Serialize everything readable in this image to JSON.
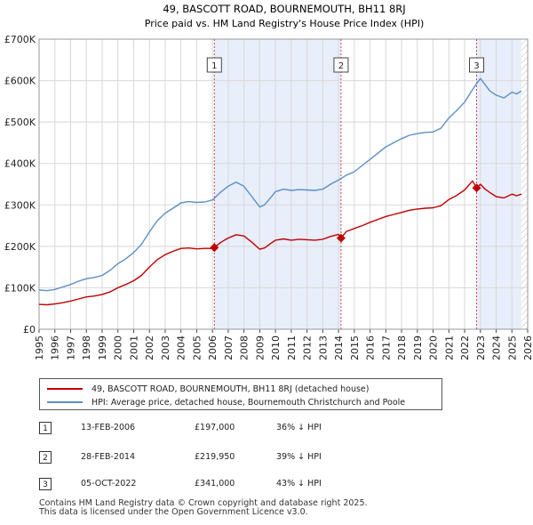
{
  "chart_data": {
    "type": "line",
    "title": "49, BASCOTT ROAD, BOURNEMOUTH, BH11 8RJ",
    "subtitle": "Price paid vs. HM Land Registry's House Price Index (HPI)",
    "xlabel": "",
    "ylabel": "",
    "xlim": [
      1995,
      2026
    ],
    "ylim": [
      0,
      700000
    ],
    "yticks": [
      {
        "value": 0,
        "label": "£0"
      },
      {
        "value": 100000,
        "label": "£100K"
      },
      {
        "value": 200000,
        "label": "£200K"
      },
      {
        "value": 300000,
        "label": "£300K"
      },
      {
        "value": 400000,
        "label": "£400K"
      },
      {
        "value": 500000,
        "label": "£500K"
      },
      {
        "value": 600000,
        "label": "£600K"
      },
      {
        "value": 700000,
        "label": "£700K"
      }
    ],
    "xticks": [
      "1995",
      "1996",
      "1997",
      "1998",
      "1999",
      "2000",
      "2001",
      "2002",
      "2003",
      "2004",
      "2005",
      "2006",
      "2007",
      "2008",
      "2009",
      "2010",
      "2011",
      "2012",
      "2013",
      "2014",
      "2015",
      "2016",
      "2017",
      "2018",
      "2019",
      "2020",
      "2021",
      "2022",
      "2023",
      "2024",
      "2025",
      "2026"
    ],
    "grid": true,
    "series": [
      {
        "name": "HPI: Average price, detached house, Bournemouth Christchurch and Poole",
        "color": "#5b8fc9",
        "x": [
          1995.0,
          1995.5,
          1996.0,
          1996.5,
          1997.0,
          1997.5,
          1998.0,
          1998.5,
          1999.0,
          1999.5,
          2000.0,
          2000.5,
          2001.0,
          2001.5,
          2002.0,
          2002.5,
          2003.0,
          2003.5,
          2004.0,
          2004.5,
          2005.0,
          2005.5,
          2006.0,
          2006.5,
          2007.0,
          2007.5,
          2008.0,
          2008.5,
          2009.0,
          2009.3,
          2009.7,
          2010.0,
          2010.5,
          2011.0,
          2011.5,
          2012.0,
          2012.5,
          2013.0,
          2013.5,
          2014.0,
          2014.5,
          2015.0,
          2015.5,
          2016.0,
          2016.5,
          2017.0,
          2017.5,
          2018.0,
          2018.5,
          2019.0,
          2019.5,
          2020.0,
          2020.5,
          2021.0,
          2021.5,
          2022.0,
          2022.5,
          2022.8,
          2023.0,
          2023.3,
          2023.6,
          2024.0,
          2024.5,
          2025.0,
          2025.3,
          2025.6
        ],
        "values": [
          95000,
          93000,
          96000,
          102000,
          108000,
          116000,
          122000,
          125000,
          130000,
          142000,
          158000,
          170000,
          185000,
          205000,
          235000,
          262000,
          280000,
          292000,
          305000,
          308000,
          306000,
          307000,
          312000,
          330000,
          345000,
          355000,
          345000,
          320000,
          295000,
          300000,
          318000,
          332000,
          338000,
          335000,
          337000,
          336000,
          335000,
          338000,
          350000,
          360000,
          372000,
          380000,
          395000,
          410000,
          425000,
          440000,
          450000,
          460000,
          468000,
          472000,
          475000,
          476000,
          485000,
          510000,
          528000,
          548000,
          578000,
          595000,
          605000,
          590000,
          575000,
          565000,
          558000,
          572000,
          568000,
          575000
        ]
      },
      {
        "name": "49, BASCOTT ROAD, BOURNEMOUTH, BH11 8RJ (detached house)",
        "color": "#c00000",
        "x": [
          1995.0,
          1995.5,
          1996.0,
          1996.5,
          1997.0,
          1997.5,
          1998.0,
          1998.5,
          1999.0,
          1999.5,
          2000.0,
          2000.5,
          2001.0,
          2001.5,
          2002.0,
          2002.5,
          2003.0,
          2003.5,
          2004.0,
          2004.5,
          2005.0,
          2005.5,
          2006.0,
          2006.12,
          2006.5,
          2007.0,
          2007.5,
          2008.0,
          2008.5,
          2009.0,
          2009.3,
          2009.7,
          2010.0,
          2010.5,
          2011.0,
          2011.5,
          2012.0,
          2012.5,
          2013.0,
          2013.5,
          2014.0,
          2014.16,
          2014.5,
          2015.0,
          2015.5,
          2016.0,
          2016.5,
          2017.0,
          2017.5,
          2018.0,
          2018.5,
          2019.0,
          2019.5,
          2020.0,
          2020.5,
          2021.0,
          2021.5,
          2022.0,
          2022.5,
          2022.76,
          2023.0,
          2023.3,
          2023.6,
          2024.0,
          2024.5,
          2025.0,
          2025.3,
          2025.6
        ],
        "values": [
          60000,
          59000,
          61000,
          64000,
          68000,
          73000,
          78000,
          80000,
          84000,
          90000,
          100000,
          108000,
          117000,
          130000,
          150000,
          168000,
          180000,
          188000,
          195000,
          196000,
          194000,
          195000,
          195000,
          197000,
          209000,
          220000,
          228000,
          225000,
          210000,
          193000,
          196000,
          207000,
          215000,
          218000,
          215000,
          217000,
          216000,
          215000,
          217000,
          224000,
          229000,
          219950,
          236000,
          243000,
          250000,
          258000,
          265000,
          272000,
          277000,
          282000,
          287000,
          290000,
          292000,
          293000,
          298000,
          313000,
          323000,
          336000,
          358000,
          341000,
          350000,
          338000,
          330000,
          320000,
          317000,
          326000,
          322000,
          326000
        ]
      }
    ],
    "annotations": [
      {
        "label": "1",
        "x": 2006.12,
        "value": 197000
      },
      {
        "label": "2",
        "x": 2014.16,
        "value": 219950
      },
      {
        "label": "3",
        "x": 2022.76,
        "value": 341000
      }
    ],
    "shaded_ranges": [
      [
        2006.12,
        2014.16
      ],
      [
        2022.76,
        2025.6
      ]
    ],
    "hatched_range": [
      2025.6,
      2026
    ]
  },
  "legend": [
    {
      "label": "49, BASCOTT ROAD, BOURNEMOUTH, BH11 8RJ (detached house)",
      "color": "#c00000"
    },
    {
      "label": "HPI: Average price, detached house, Bournemouth Christchurch and Poole",
      "color": "#5b8fc9"
    }
  ],
  "sales": [
    {
      "num": "1",
      "date": "13-FEB-2006",
      "price": "£197,000",
      "delta": "36% ↓ HPI"
    },
    {
      "num": "2",
      "date": "28-FEB-2014",
      "price": "£219,950",
      "delta": "39% ↓ HPI"
    },
    {
      "num": "3",
      "date": "05-OCT-2022",
      "price": "£341,000",
      "delta": "43% ↓ HPI"
    }
  ],
  "footer": {
    "line1": "Contains HM Land Registry data © Crown copyright and database right 2025.",
    "line2": "This data is licensed under the Open Government Licence v3.0."
  }
}
